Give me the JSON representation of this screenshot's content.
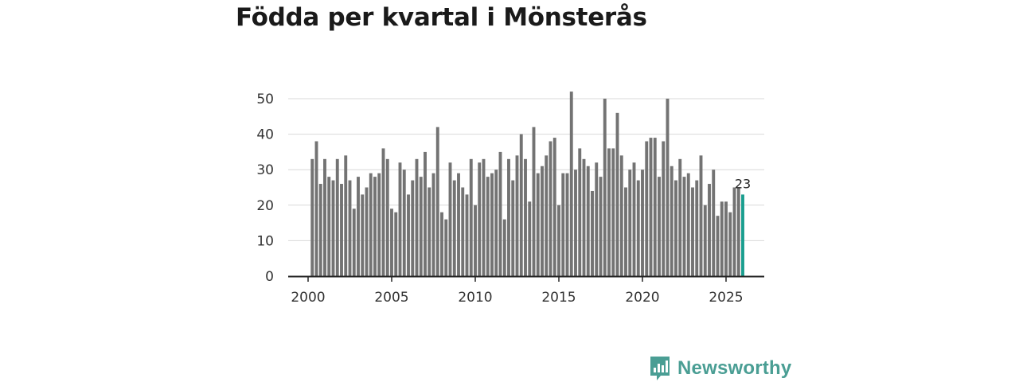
{
  "colors": {
    "bar": "#737373",
    "highlight": "#1a9e8f",
    "grid": "#d9d9d9",
    "axis": "#222222",
    "brand": "#4a9e94"
  },
  "brand": {
    "name": "Newsworthy",
    "icon": "bar-chart-speech-bubble-icon"
  },
  "chart_data": {
    "type": "bar",
    "title": "Födda per kvartal i Mönsterås",
    "xlabel": "",
    "ylabel": "",
    "ylim": [
      0,
      52
    ],
    "yticks": [
      0,
      10,
      20,
      30,
      40,
      50
    ],
    "xticks": [
      2000,
      2005,
      2010,
      2015,
      2020,
      2025
    ],
    "x_start": 2000.25,
    "x_step": 0.25,
    "values": [
      33,
      38,
      26,
      33,
      28,
      27,
      33,
      26,
      34,
      27,
      19,
      28,
      23,
      25,
      29,
      28,
      29,
      36,
      33,
      19,
      18,
      32,
      30,
      23,
      27,
      33,
      28,
      35,
      25,
      29,
      42,
      18,
      16,
      32,
      27,
      29,
      25,
      23,
      33,
      20,
      32,
      33,
      28,
      29,
      30,
      35,
      16,
      33,
      27,
      34,
      40,
      33,
      21,
      42,
      29,
      31,
      34,
      38,
      39,
      20,
      29,
      29,
      52,
      30,
      36,
      33,
      31,
      24,
      32,
      28,
      50,
      36,
      36,
      46,
      34,
      25,
      30,
      32,
      27,
      30,
      38,
      39,
      39,
      28,
      38,
      50,
      31,
      27,
      33,
      28,
      29,
      25,
      27,
      34,
      20,
      26,
      30,
      17,
      21,
      21,
      18,
      25,
      25,
      23
    ],
    "highlight_index": 103,
    "highlight_label": "23"
  }
}
